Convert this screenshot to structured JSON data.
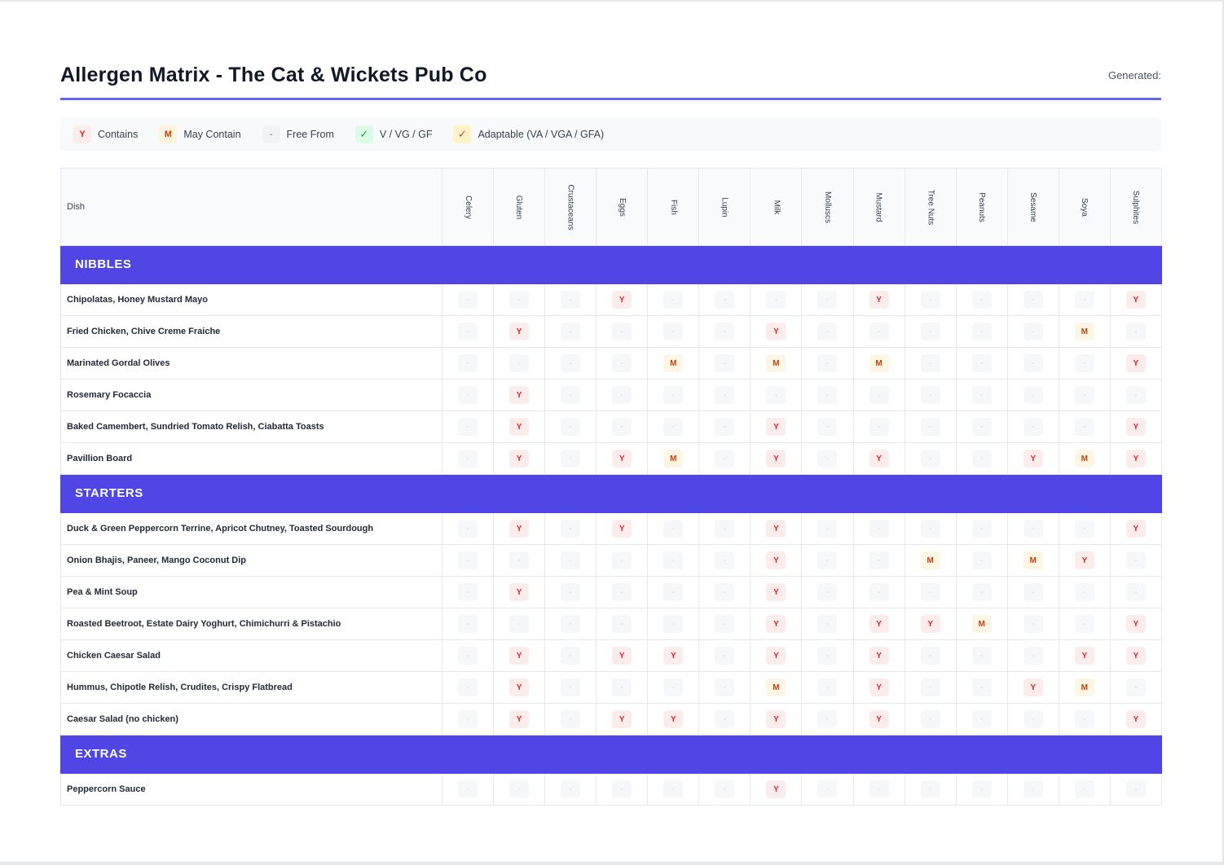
{
  "title": "Allergen Matrix - The Cat & Wickets Pub Co",
  "generated_label": "Generated:",
  "legend": [
    {
      "symbol": "Y",
      "label": "Contains",
      "kind": "y"
    },
    {
      "symbol": "M",
      "label": "May Contain",
      "kind": "m"
    },
    {
      "symbol": "-",
      "label": "Free From",
      "kind": "free"
    },
    {
      "symbol": "✓",
      "label": "V / VG / GF",
      "kind": "v"
    },
    {
      "symbol": "✓",
      "label": "Adaptable (VA / VGA / GFA)",
      "kind": "a"
    }
  ],
  "table": {
    "dish_header": "Dish",
    "allergens": [
      "Celery",
      "Gluten",
      "Crustaceans",
      "Eggs",
      "Fish",
      "Lupin",
      "Milk",
      "Molluscs",
      "Mustard",
      "Tree Nuts",
      "Peanuts",
      "Sesame",
      "Soya",
      "Sulphites"
    ],
    "sections": [
      {
        "name": "NIBBLES",
        "dishes": [
          {
            "name": "Chipolatas, Honey Mustard Mayo",
            "values": [
              "-",
              "-",
              "-",
              "Y",
              "-",
              "-",
              "-",
              "-",
              "Y",
              "-",
              "-",
              "-",
              "-",
              "Y"
            ]
          },
          {
            "name": "Fried Chicken, Chive Creme Fraiche",
            "values": [
              "-",
              "Y",
              "-",
              "-",
              "-",
              "-",
              "Y",
              "-",
              "-",
              "-",
              "-",
              "-",
              "M",
              "-"
            ]
          },
          {
            "name": "Marinated Gordal Olives",
            "values": [
              "-",
              "-",
              "-",
              "-",
              "M",
              "-",
              "M",
              "-",
              "M",
              "-",
              "-",
              "-",
              "-",
              "Y"
            ]
          },
          {
            "name": "Rosemary Focaccia",
            "values": [
              "-",
              "Y",
              "-",
              "-",
              "-",
              "-",
              "-",
              "-",
              "-",
              "-",
              "-",
              "-",
              "-",
              "-"
            ]
          },
          {
            "name": "Baked Camembert, Sundried Tomato Relish, Ciabatta Toasts",
            "values": [
              "-",
              "Y",
              "-",
              "-",
              "-",
              "-",
              "Y",
              "-",
              "-",
              "-",
              "-",
              "-",
              "-",
              "Y"
            ]
          },
          {
            "name": "Pavillion Board",
            "values": [
              "-",
              "Y",
              "-",
              "Y",
              "M",
              "-",
              "Y",
              "-",
              "Y",
              "-",
              "-",
              "Y",
              "M",
              "Y"
            ]
          }
        ]
      },
      {
        "name": "STARTERS",
        "dishes": [
          {
            "name": "Duck & Green Peppercorn Terrine, Apricot Chutney, Toasted Sourdough",
            "values": [
              "-",
              "Y",
              "-",
              "Y",
              "-",
              "-",
              "Y",
              "-",
              "-",
              "-",
              "-",
              "-",
              "-",
              "Y"
            ]
          },
          {
            "name": "Onion Bhajis, Paneer, Mango Coconut Dip",
            "values": [
              "-",
              "-",
              "-",
              "-",
              "-",
              "-",
              "Y",
              "-",
              "-",
              "M",
              "-",
              "M",
              "Y",
              "-"
            ]
          },
          {
            "name": "Pea & Mint Soup",
            "values": [
              "-",
              "Y",
              "-",
              "-",
              "-",
              "-",
              "Y",
              "-",
              "-",
              "-",
              "-",
              "-",
              "-",
              "-"
            ]
          },
          {
            "name": "Roasted Beetroot, Estate Dairy Yoghurt, Chimichurri & Pistachio",
            "values": [
              "-",
              "-",
              "-",
              "-",
              "-",
              "-",
              "Y",
              "-",
              "Y",
              "Y",
              "M",
              "-",
              "-",
              "Y"
            ]
          },
          {
            "name": "Chicken Caesar Salad",
            "values": [
              "-",
              "Y",
              "-",
              "Y",
              "Y",
              "-",
              "Y",
              "-",
              "Y",
              "-",
              "-",
              "-",
              "Y",
              "Y"
            ]
          },
          {
            "name": "Hummus, Chipotle Relish, Crudites, Crispy Flatbread",
            "values": [
              "-",
              "Y",
              "-",
              "-",
              "-",
              "-",
              "M",
              "-",
              "Y",
              "-",
              "-",
              "Y",
              "M",
              "-"
            ]
          },
          {
            "name": "Caesar Salad (no chicken)",
            "values": [
              "-",
              "Y",
              "-",
              "Y",
              "Y",
              "-",
              "Y",
              "-",
              "Y",
              "-",
              "-",
              "-",
              "-",
              "Y"
            ]
          }
        ]
      },
      {
        "name": "EXTRAS",
        "dishes": [
          {
            "name": "Peppercorn Sauce",
            "values": [
              "-",
              "-",
              "-",
              "-",
              "-",
              "-",
              "Y",
              "-",
              "-",
              "-",
              "-",
              "-",
              "-",
              "-"
            ]
          }
        ]
      }
    ]
  },
  "colors": {
    "accent": "#4f46e5",
    "header_rule": "#6366f1",
    "contains": "#dc2626",
    "may_contain": "#c2410c",
    "free_from": "#d1d5db"
  }
}
